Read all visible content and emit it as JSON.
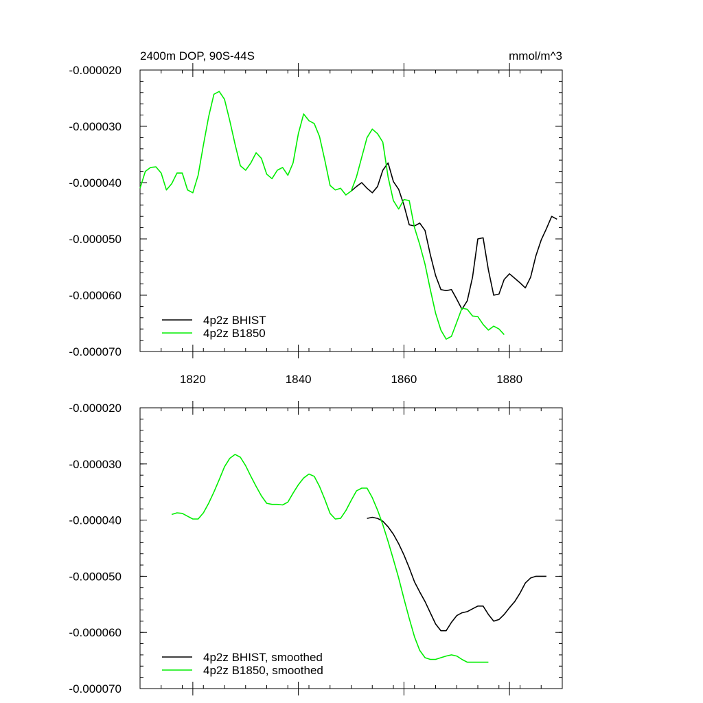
{
  "colors": {
    "bhist": "#000000",
    "b1850": "#00ee00",
    "frame": "#000000",
    "background": "#ffffff"
  },
  "chart_data": [
    {
      "type": "line",
      "title_left": "2400m DOP, 90S-44S",
      "title_right": "mmol/m^3",
      "xlabel": "",
      "ylabel": "",
      "xlim": [
        1810,
        1890
      ],
      "ylim": [
        -7e-05,
        -2e-05
      ],
      "x_ticks": [
        1820,
        1840,
        1860,
        1880
      ],
      "x_tick_labels": [
        "1820",
        "1840",
        "1860",
        "1880"
      ],
      "y_ticks": [
        -2e-05,
        -3e-05,
        -4e-05,
        -5e-05,
        -6e-05,
        -7e-05
      ],
      "y_tick_labels": [
        "-0.000020",
        "-0.000030",
        "-0.000040",
        "-0.000050",
        "-0.000060",
        "-0.000070"
      ],
      "grid": false,
      "legend_position": "bottom-left",
      "series": [
        {
          "name": "4p2z BHIST",
          "color_key": "bhist",
          "x": [
            1850,
            1851,
            1852,
            1853,
            1854,
            1855,
            1856,
            1857,
            1858,
            1859,
            1860,
            1861,
            1862,
            1863,
            1864,
            1865,
            1866,
            1867,
            1868,
            1869,
            1870,
            1871,
            1872,
            1873,
            1874,
            1875,
            1876,
            1877,
            1878,
            1879,
            1880,
            1881,
            1882,
            1883,
            1884,
            1885,
            1886,
            1887,
            1888,
            1889
          ],
          "y": [
            -4.15e-05,
            -4.07e-05,
            -4e-05,
            -4.1e-05,
            -4.18e-05,
            -4.07e-05,
            -3.78e-05,
            -3.65e-05,
            -3.98e-05,
            -4.12e-05,
            -4.4e-05,
            -4.75e-05,
            -4.77e-05,
            -4.72e-05,
            -4.85e-05,
            -5.28e-05,
            -5.65e-05,
            -5.9e-05,
            -5.92e-05,
            -5.9e-05,
            -6.07e-05,
            -6.25e-05,
            -6.1e-05,
            -5.68e-05,
            -5e-05,
            -4.98e-05,
            -5.55e-05,
            -6e-05,
            -5.98e-05,
            -5.72e-05,
            -5.62e-05,
            -5.7e-05,
            -5.78e-05,
            -5.87e-05,
            -5.68e-05,
            -5.3e-05,
            -5.02e-05,
            -4.82e-05,
            -4.6e-05,
            -4.65e-05
          ]
        },
        {
          "name": "4p2z B1850",
          "color_key": "b1850",
          "x": [
            1810,
            1811,
            1812,
            1813,
            1814,
            1815,
            1816,
            1817,
            1818,
            1819,
            1820,
            1821,
            1822,
            1823,
            1824,
            1825,
            1826,
            1827,
            1828,
            1829,
            1830,
            1831,
            1832,
            1833,
            1834,
            1835,
            1836,
            1837,
            1838,
            1839,
            1840,
            1841,
            1842,
            1843,
            1844,
            1845,
            1846,
            1847,
            1848,
            1849,
            1850,
            1851,
            1852,
            1853,
            1854,
            1855,
            1856,
            1857,
            1858,
            1859,
            1860,
            1861,
            1862,
            1863,
            1864,
            1865,
            1866,
            1867,
            1868,
            1869,
            1870,
            1871,
            1872,
            1873,
            1874,
            1875,
            1876,
            1877,
            1878,
            1879
          ],
          "y": [
            -4.1e-05,
            -3.8e-05,
            -3.73e-05,
            -3.72e-05,
            -3.83e-05,
            -4.13e-05,
            -4.02e-05,
            -3.83e-05,
            -3.83e-05,
            -4.13e-05,
            -4.18e-05,
            -3.87e-05,
            -3.33e-05,
            -2.83e-05,
            -2.43e-05,
            -2.38e-05,
            -2.52e-05,
            -2.9e-05,
            -3.32e-05,
            -3.7e-05,
            -3.78e-05,
            -3.65e-05,
            -3.47e-05,
            -3.57e-05,
            -3.85e-05,
            -3.93e-05,
            -3.78e-05,
            -3.73e-05,
            -3.87e-05,
            -3.65e-05,
            -3.13e-05,
            -2.78e-05,
            -2.9e-05,
            -2.95e-05,
            -3.18e-05,
            -3.6e-05,
            -4.05e-05,
            -4.13e-05,
            -4.1e-05,
            -4.22e-05,
            -4.15e-05,
            -3.9e-05,
            -3.55e-05,
            -3.2e-05,
            -3.05e-05,
            -3.13e-05,
            -3.28e-05,
            -3.9e-05,
            -4.32e-05,
            -4.47e-05,
            -4.3e-05,
            -4.32e-05,
            -4.8e-05,
            -5.1e-05,
            -5.45e-05,
            -5.9e-05,
            -6.32e-05,
            -6.62e-05,
            -6.78e-05,
            -6.73e-05,
            -6.48e-05,
            -6.23e-05,
            -6.25e-05,
            -6.37e-05,
            -6.38e-05,
            -6.52e-05,
            -6.62e-05,
            -6.55e-05,
            -6.6e-05,
            -6.7e-05
          ]
        }
      ]
    },
    {
      "type": "line",
      "title_left": "",
      "title_right": "",
      "xlabel": "",
      "ylabel": "",
      "xlim": [
        1810,
        1890
      ],
      "ylim": [
        -7e-05,
        -2e-05
      ],
      "x_ticks": [
        1820,
        1840,
        1860,
        1880
      ],
      "x_tick_labels": [],
      "y_ticks": [
        -2e-05,
        -3e-05,
        -4e-05,
        -5e-05,
        -6e-05,
        -7e-05
      ],
      "y_tick_labels": [
        "-0.000020",
        "-0.000030",
        "-0.000040",
        "-0.000050",
        "-0.000060",
        "-0.000070"
      ],
      "grid": false,
      "legend_position": "bottom-left",
      "series": [
        {
          "name": "4p2z BHIST, smoothed",
          "color_key": "bhist",
          "x": [
            1853,
            1854,
            1855,
            1856,
            1857,
            1858,
            1859,
            1860,
            1861,
            1862,
            1863,
            1864,
            1865,
            1866,
            1867,
            1868,
            1869,
            1870,
            1871,
            1872,
            1873,
            1874,
            1875,
            1876,
            1877,
            1878,
            1879,
            1880,
            1881,
            1882,
            1883,
            1884,
            1885,
            1886,
            1887
          ],
          "y": [
            -3.97e-05,
            -3.95e-05,
            -3.97e-05,
            -4.02e-05,
            -4.12e-05,
            -4.25e-05,
            -4.42e-05,
            -4.62e-05,
            -4.85e-05,
            -5.1e-05,
            -5.28e-05,
            -5.45e-05,
            -5.65e-05,
            -5.85e-05,
            -5.97e-05,
            -5.97e-05,
            -5.82e-05,
            -5.7e-05,
            -5.65e-05,
            -5.63e-05,
            -5.58e-05,
            -5.53e-05,
            -5.53e-05,
            -5.68e-05,
            -5.8e-05,
            -5.77e-05,
            -5.68e-05,
            -5.56e-05,
            -5.45e-05,
            -5.3e-05,
            -5.12e-05,
            -5.03e-05,
            -5e-05,
            -5e-05,
            -5e-05
          ]
        },
        {
          "name": "4p2z B1850, smoothed",
          "color_key": "b1850",
          "x": [
            1816,
            1817,
            1818,
            1819,
            1820,
            1821,
            1822,
            1823,
            1824,
            1825,
            1826,
            1827,
            1828,
            1829,
            1830,
            1831,
            1832,
            1833,
            1834,
            1835,
            1836,
            1837,
            1838,
            1839,
            1840,
            1841,
            1842,
            1843,
            1844,
            1845,
            1846,
            1847,
            1848,
            1849,
            1850,
            1851,
            1852,
            1853,
            1854,
            1855,
            1856,
            1857,
            1858,
            1859,
            1860,
            1861,
            1862,
            1863,
            1864,
            1865,
            1866,
            1867,
            1868,
            1869,
            1870,
            1871,
            1872,
            1873,
            1874,
            1875,
            1876
          ],
          "y": [
            -3.9e-05,
            -3.87e-05,
            -3.88e-05,
            -3.93e-05,
            -3.98e-05,
            -3.98e-05,
            -3.87e-05,
            -3.7e-05,
            -3.5e-05,
            -3.28e-05,
            -3.05e-05,
            -2.9e-05,
            -2.83e-05,
            -2.88e-05,
            -3.03e-05,
            -3.22e-05,
            -3.4e-05,
            -3.57e-05,
            -3.7e-05,
            -3.72e-05,
            -3.72e-05,
            -3.73e-05,
            -3.68e-05,
            -3.52e-05,
            -3.37e-05,
            -3.25e-05,
            -3.18e-05,
            -3.22e-05,
            -3.4e-05,
            -3.63e-05,
            -3.88e-05,
            -3.98e-05,
            -3.97e-05,
            -3.83e-05,
            -3.65e-05,
            -3.48e-05,
            -3.43e-05,
            -3.43e-05,
            -3.6e-05,
            -3.82e-05,
            -4.08e-05,
            -4.38e-05,
            -4.7e-05,
            -5.03e-05,
            -5.4e-05,
            -5.75e-05,
            -6.08e-05,
            -6.32e-05,
            -6.45e-05,
            -6.48e-05,
            -6.48e-05,
            -6.45e-05,
            -6.42e-05,
            -6.4e-05,
            -6.42e-05,
            -6.48e-05,
            -6.53e-05,
            -6.53e-05,
            -6.53e-05,
            -6.53e-05,
            -6.53e-05
          ]
        }
      ]
    }
  ]
}
